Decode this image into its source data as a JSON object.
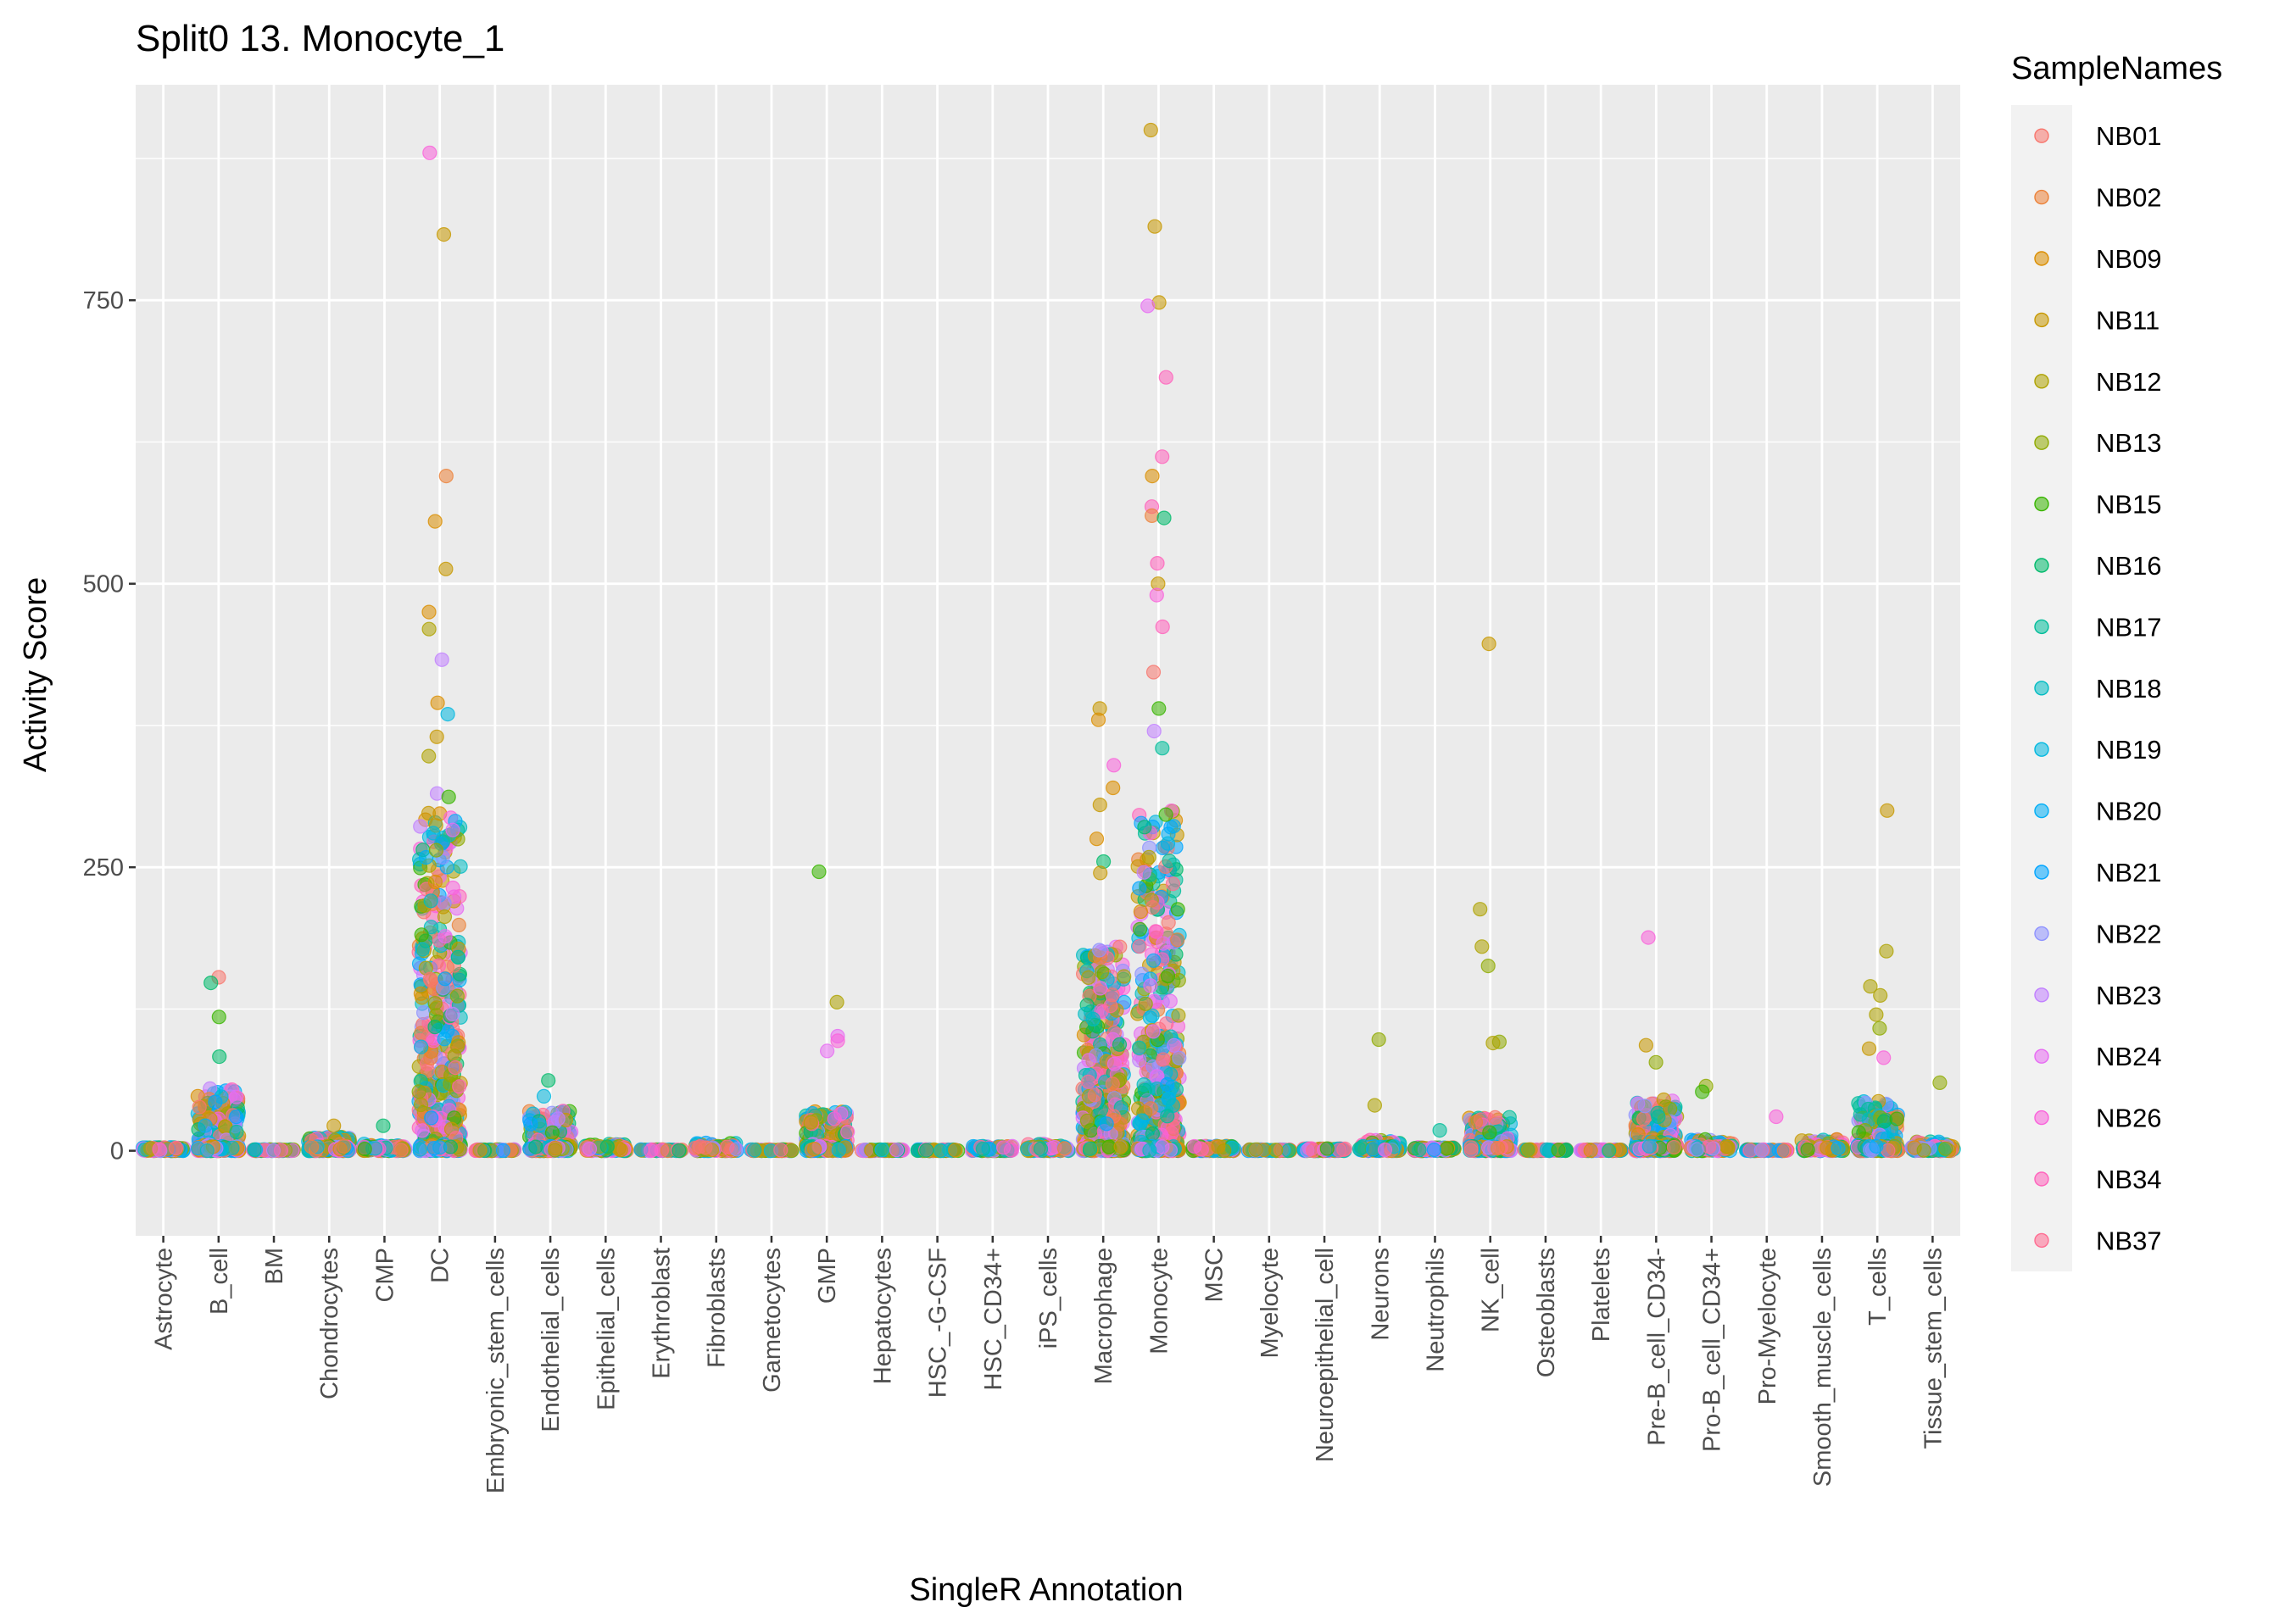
{
  "chart_data": {
    "type": "scatter",
    "title": "Split0 13. Monocyte_1",
    "xlabel": "SingleR Annotation",
    "ylabel": "Activity Score",
    "ylim": [
      -75,
      940
    ],
    "yticks": [
      0,
      250,
      500,
      750
    ],
    "grid": true,
    "legend_title": "SampleNames",
    "legend_position": "right",
    "categories": [
      "Astrocyte",
      "B_cell",
      "BM",
      "Chondrocytes",
      "CMP",
      "DC",
      "Embryonic_stem_cells",
      "Endothelial_cells",
      "Epithelial_cells",
      "Erythroblast",
      "Fibroblasts",
      "Gametocytes",
      "GMP",
      "Hepatocytes",
      "HSC_-G-CSF",
      "HSC_CD34+",
      "iPS_cells",
      "Macrophage",
      "Monocyte",
      "MSC",
      "Myelocyte",
      "Neuroepithelial_cell",
      "Neurons",
      "Neutrophils",
      "NK_cell",
      "Osteoblasts",
      "Platelets",
      "Pre-B_cell_CD34-",
      "Pro-B_cell_CD34+",
      "Pro-Myelocyte",
      "Smooth_muscle_cells",
      "T_cells",
      "Tissue_stem_cells"
    ],
    "series": [
      {
        "name": "NB01",
        "color": "#F8766D"
      },
      {
        "name": "NB02",
        "color": "#EC8239"
      },
      {
        "name": "NB09",
        "color": "#DB8E00"
      },
      {
        "name": "NB11",
        "color": "#C79800"
      },
      {
        "name": "NB12",
        "color": "#AEA200"
      },
      {
        "name": "NB13",
        "color": "#8FAA00"
      },
      {
        "name": "NB15",
        "color": "#38B500"
      },
      {
        "name": "NB16",
        "color": "#00BA6B"
      },
      {
        "name": "NB17",
        "color": "#00BD9A"
      },
      {
        "name": "NB18",
        "color": "#00BCC2"
      },
      {
        "name": "NB19",
        "color": "#00B8E0"
      },
      {
        "name": "NB20",
        "color": "#00AEF6"
      },
      {
        "name": "NB21",
        "color": "#00A5FF"
      },
      {
        "name": "NB22",
        "color": "#8E92FF"
      },
      {
        "name": "NB23",
        "color": "#C17FFF"
      },
      {
        "name": "NB24",
        "color": "#E76BF3"
      },
      {
        "name": "NB26",
        "color": "#FA62DB"
      },
      {
        "name": "NB34",
        "color": "#FF62BC"
      },
      {
        "name": "NB37",
        "color": "#FF6C91"
      }
    ],
    "category_spread": [
      3,
      55,
      1,
      12,
      6,
      300,
      1,
      35,
      6,
      1,
      7,
      1,
      35,
      1,
      1,
      4,
      6,
      180,
      300,
      5,
      1,
      2,
      10,
      3,
      30,
      1,
      1,
      45,
      10,
      1,
      10,
      45,
      8
    ],
    "notable_points": [
      {
        "category": "DC",
        "y": 880,
        "sample": "NB26"
      },
      {
        "category": "DC",
        "y": 808,
        "sample": "NB11"
      },
      {
        "category": "DC",
        "y": 595,
        "sample": "NB02"
      },
      {
        "category": "DC",
        "y": 555,
        "sample": "NB09"
      },
      {
        "category": "DC",
        "y": 513,
        "sample": "NB11"
      },
      {
        "category": "DC",
        "y": 475,
        "sample": "NB09"
      },
      {
        "category": "DC",
        "y": 460,
        "sample": "NB12"
      },
      {
        "category": "DC",
        "y": 433,
        "sample": "NB23"
      },
      {
        "category": "DC",
        "y": 395,
        "sample": "NB09"
      },
      {
        "category": "DC",
        "y": 385,
        "sample": "NB19"
      },
      {
        "category": "DC",
        "y": 365,
        "sample": "NB11"
      },
      {
        "category": "DC",
        "y": 348,
        "sample": "NB12"
      },
      {
        "category": "DC",
        "y": 315,
        "sample": "NB23"
      },
      {
        "category": "DC",
        "y": 312,
        "sample": "NB15"
      },
      {
        "category": "DC",
        "y": 280,
        "sample": "NB19"
      },
      {
        "category": "DC",
        "y": 265,
        "sample": "NB13"
      },
      {
        "category": "Monocyte",
        "y": 900,
        "sample": "NB11"
      },
      {
        "category": "Monocyte",
        "y": 815,
        "sample": "NB11"
      },
      {
        "category": "Monocyte",
        "y": 748,
        "sample": "NB11"
      },
      {
        "category": "Monocyte",
        "y": 745,
        "sample": "NB24"
      },
      {
        "category": "Monocyte",
        "y": 682,
        "sample": "NB34"
      },
      {
        "category": "Monocyte",
        "y": 612,
        "sample": "NB34"
      },
      {
        "category": "Monocyte",
        "y": 595,
        "sample": "NB09"
      },
      {
        "category": "Monocyte",
        "y": 568,
        "sample": "NB34"
      },
      {
        "category": "Monocyte",
        "y": 560,
        "sample": "NB02"
      },
      {
        "category": "Monocyte",
        "y": 558,
        "sample": "NB16"
      },
      {
        "category": "Monocyte",
        "y": 518,
        "sample": "NB34"
      },
      {
        "category": "Monocyte",
        "y": 500,
        "sample": "NB11"
      },
      {
        "category": "Monocyte",
        "y": 490,
        "sample": "NB26"
      },
      {
        "category": "Monocyte",
        "y": 462,
        "sample": "NB34"
      },
      {
        "category": "Monocyte",
        "y": 422,
        "sample": "NB01"
      },
      {
        "category": "Monocyte",
        "y": 390,
        "sample": "NB15"
      },
      {
        "category": "Monocyte",
        "y": 370,
        "sample": "NB23"
      },
      {
        "category": "Monocyte",
        "y": 355,
        "sample": "NB17"
      },
      {
        "category": "Macrophage",
        "y": 390,
        "sample": "NB11"
      },
      {
        "category": "Macrophage",
        "y": 380,
        "sample": "NB09"
      },
      {
        "category": "Macrophage",
        "y": 340,
        "sample": "NB26"
      },
      {
        "category": "Macrophage",
        "y": 320,
        "sample": "NB09"
      },
      {
        "category": "Macrophage",
        "y": 305,
        "sample": "NB11"
      },
      {
        "category": "Macrophage",
        "y": 275,
        "sample": "NB09"
      },
      {
        "category": "Macrophage",
        "y": 255,
        "sample": "NB16"
      },
      {
        "category": "Macrophage",
        "y": 245,
        "sample": "NB11"
      },
      {
        "category": "NK_cell",
        "y": 447,
        "sample": "NB11"
      },
      {
        "category": "NK_cell",
        "y": 213,
        "sample": "NB12"
      },
      {
        "category": "NK_cell",
        "y": 180,
        "sample": "NB12"
      },
      {
        "category": "NK_cell",
        "y": 163,
        "sample": "NB13"
      },
      {
        "category": "NK_cell",
        "y": 96,
        "sample": "NB13"
      },
      {
        "category": "NK_cell",
        "y": 95,
        "sample": "NB12"
      },
      {
        "category": "T_cells",
        "y": 300,
        "sample": "NB11"
      },
      {
        "category": "T_cells",
        "y": 176,
        "sample": "NB12"
      },
      {
        "category": "T_cells",
        "y": 145,
        "sample": "NB12"
      },
      {
        "category": "T_cells",
        "y": 137,
        "sample": "NB12"
      },
      {
        "category": "T_cells",
        "y": 120,
        "sample": "NB12"
      },
      {
        "category": "T_cells",
        "y": 108,
        "sample": "NB13"
      },
      {
        "category": "T_cells",
        "y": 90,
        "sample": "NB11"
      },
      {
        "category": "T_cells",
        "y": 82,
        "sample": "NB26"
      },
      {
        "category": "GMP",
        "y": 246,
        "sample": "NB15"
      },
      {
        "category": "GMP",
        "y": 131,
        "sample": "NB12"
      },
      {
        "category": "GMP",
        "y": 101,
        "sample": "NB24"
      },
      {
        "category": "GMP",
        "y": 97,
        "sample": "NB26"
      },
      {
        "category": "GMP",
        "y": 88,
        "sample": "NB24"
      },
      {
        "category": "Pre-B_cell_CD34-",
        "y": 188,
        "sample": "NB26"
      },
      {
        "category": "Pre-B_cell_CD34-",
        "y": 93,
        "sample": "NB11"
      },
      {
        "category": "Pre-B_cell_CD34-",
        "y": 78,
        "sample": "NB13"
      },
      {
        "category": "B_cell",
        "y": 153,
        "sample": "NB01"
      },
      {
        "category": "B_cell",
        "y": 148,
        "sample": "NB16"
      },
      {
        "category": "B_cell",
        "y": 118,
        "sample": "NB15"
      },
      {
        "category": "B_cell",
        "y": 83,
        "sample": "NB16"
      },
      {
        "category": "Neurons",
        "y": 98,
        "sample": "NB13"
      },
      {
        "category": "Neurons",
        "y": 40,
        "sample": "NB12"
      },
      {
        "category": "Endothelial_cells",
        "y": 62,
        "sample": "NB16"
      },
      {
        "category": "Endothelial_cells",
        "y": 48,
        "sample": "NB19"
      },
      {
        "category": "Tissue_stem_cells",
        "y": 60,
        "sample": "NB13"
      },
      {
        "category": "Pro-B_cell_CD34+",
        "y": 57,
        "sample": "NB13"
      },
      {
        "category": "Pro-B_cell_CD34+",
        "y": 52,
        "sample": "NB15"
      },
      {
        "category": "Pro-Myelocyte",
        "y": 30,
        "sample": "NB26"
      },
      {
        "category": "Chondrocytes",
        "y": 22,
        "sample": "NB11"
      },
      {
        "category": "CMP",
        "y": 22,
        "sample": "NB16"
      },
      {
        "category": "Neutrophils",
        "y": 18,
        "sample": "NB17"
      }
    ]
  }
}
